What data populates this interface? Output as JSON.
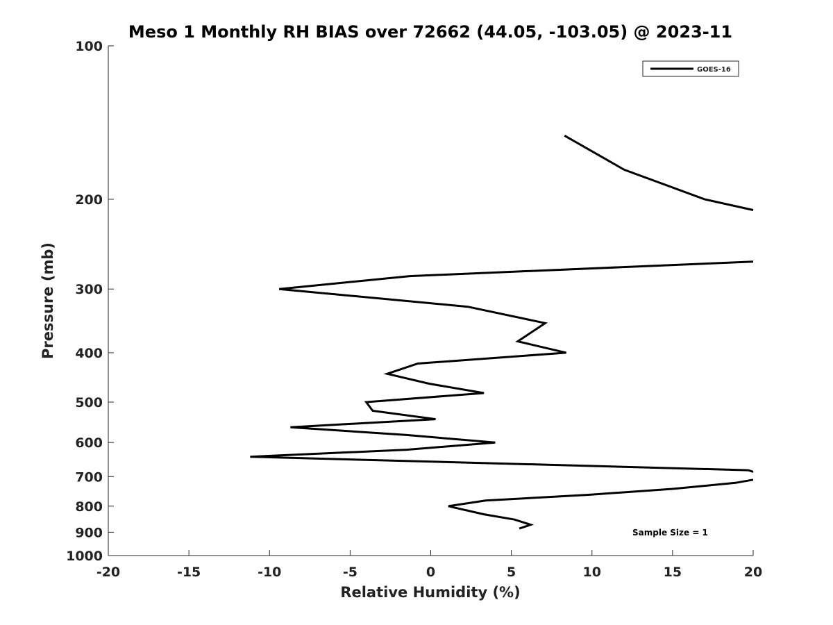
{
  "chart_data": {
    "type": "line",
    "title": "Meso 1 Monthly RH BIAS over 72662 (44.05, -103.05) @ 2023-11",
    "xlabel": "Relative Humidity (%)",
    "ylabel": "Pressure (mb)",
    "xlim": [
      -20,
      20
    ],
    "ylim": [
      1000,
      100
    ],
    "y_scale": "log",
    "y_reversed": true,
    "grid": false,
    "xticks": [
      -20,
      -15,
      -10,
      -5,
      0,
      5,
      10,
      15,
      20
    ],
    "xtick_labels": [
      "-20",
      "-15",
      "-10",
      "-5",
      "0",
      "5",
      "10",
      "15",
      "20"
    ],
    "yticks": [
      100,
      200,
      300,
      400,
      500,
      600,
      700,
      800,
      900,
      1000
    ],
    "ytick_labels": [
      "100",
      "200",
      "300",
      "400",
      "500",
      "600",
      "700",
      "800",
      "900",
      "1000"
    ],
    "legend": {
      "position": "top-right"
    },
    "annotation": "Sample Size = 1",
    "series": [
      {
        "name": "GOES-16",
        "color": "#000000",
        "segments": [
          [
            {
              "x": 8.3,
              "y": 150
            },
            {
              "x": 12.0,
              "y": 175
            },
            {
              "x": 17.0,
              "y": 200
            },
            {
              "x": 20.0,
              "y": 210
            }
          ],
          [
            {
              "x": 20.0,
              "y": 265
            },
            {
              "x": -1.3,
              "y": 283
            },
            {
              "x": -9.4,
              "y": 300
            },
            {
              "x": 2.3,
              "y": 325
            },
            {
              "x": 7.1,
              "y": 350
            },
            {
              "x": 5.4,
              "y": 380
            },
            {
              "x": 8.4,
              "y": 400
            },
            {
              "x": -0.8,
              "y": 420
            },
            {
              "x": -2.7,
              "y": 440
            },
            {
              "x": -0.1,
              "y": 460
            },
            {
              "x": 3.3,
              "y": 480
            },
            {
              "x": -4.0,
              "y": 500
            },
            {
              "x": -3.6,
              "y": 520
            },
            {
              "x": 0.3,
              "y": 540
            },
            {
              "x": -8.7,
              "y": 560
            },
            {
              "x": -1.5,
              "y": 580
            },
            {
              "x": 4.0,
              "y": 600
            },
            {
              "x": -1.5,
              "y": 620
            },
            {
              "x": -11.2,
              "y": 640
            },
            {
              "x": 19.7,
              "y": 680
            },
            {
              "x": 20.0,
              "y": 685
            }
          ],
          [
            {
              "x": 20.0,
              "y": 710
            },
            {
              "x": 18.9,
              "y": 720
            },
            {
              "x": 15.0,
              "y": 740
            },
            {
              "x": 9.8,
              "y": 760
            },
            {
              "x": 3.4,
              "y": 780
            },
            {
              "x": 1.1,
              "y": 800
            },
            {
              "x": 3.3,
              "y": 830
            },
            {
              "x": 5.2,
              "y": 850
            },
            {
              "x": 6.2,
              "y": 870
            },
            {
              "x": 5.5,
              "y": 885
            }
          ]
        ]
      }
    ]
  }
}
